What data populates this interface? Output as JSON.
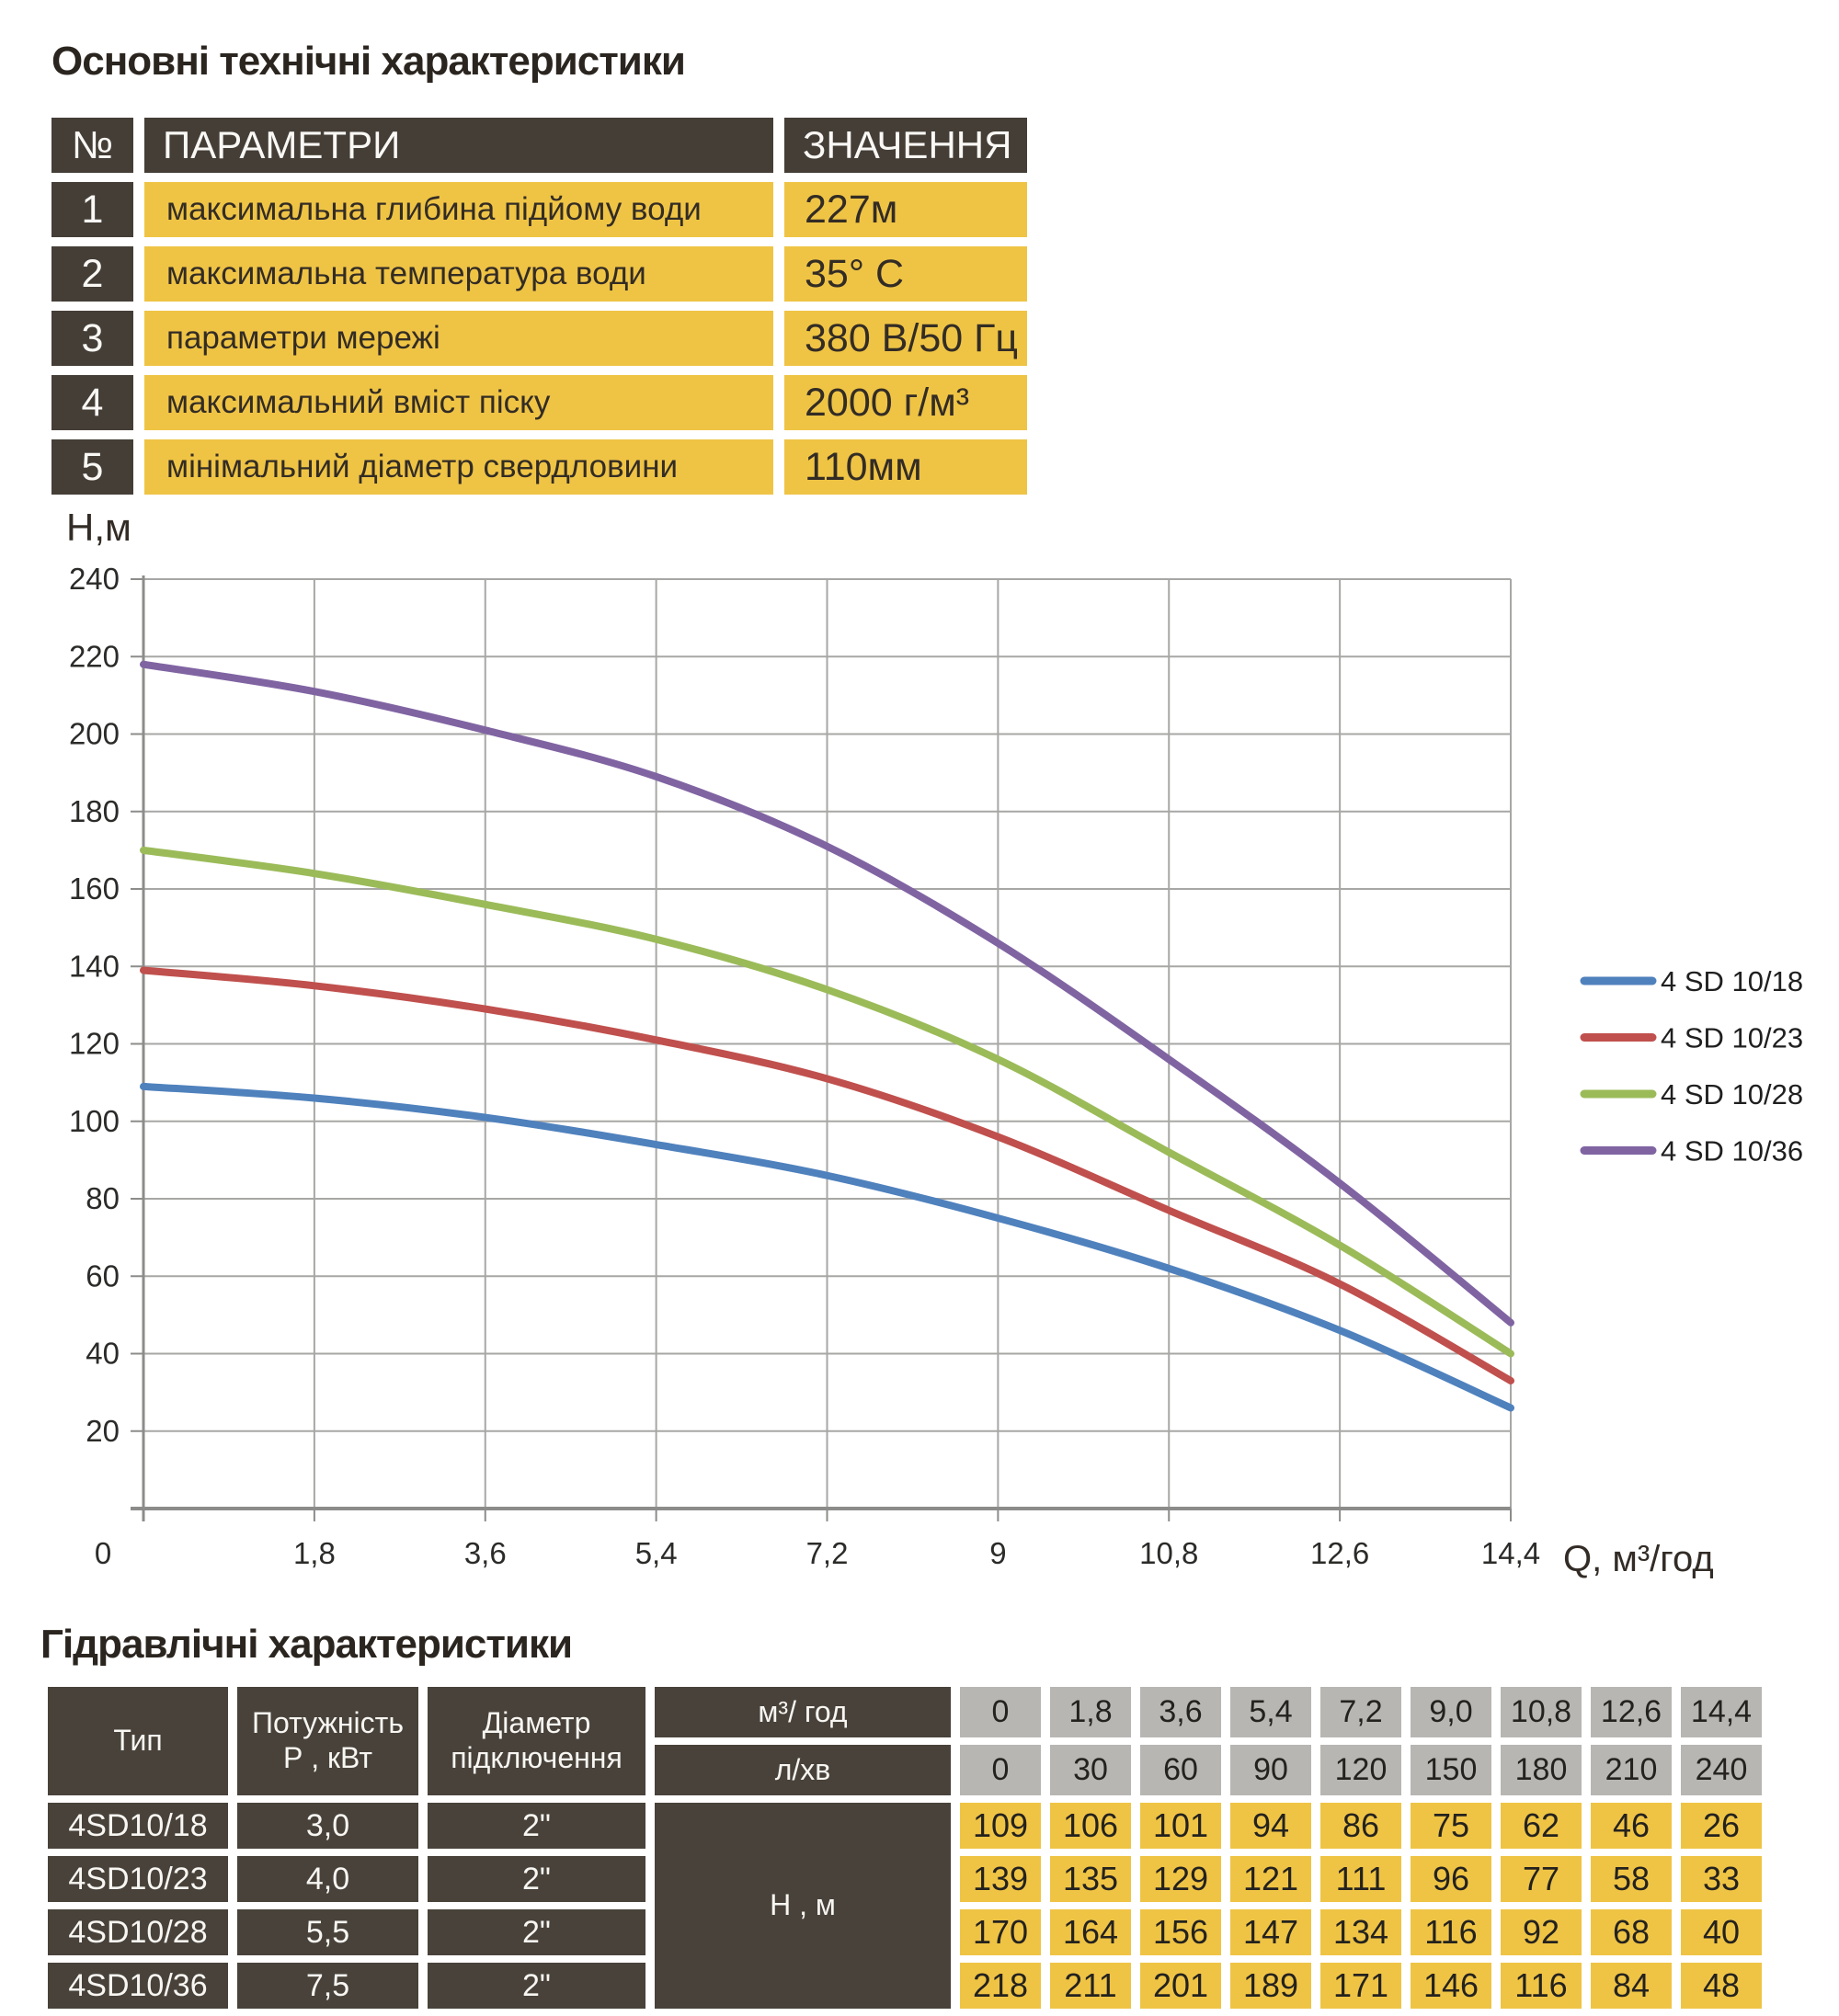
{
  "colors": {
    "accent_yellow": "#EFC445",
    "header_dark_top": "#443E37",
    "header_dark_bottom": "#48423A",
    "cell_gray": "#B8B6B2",
    "series_blue": "#4F81BD",
    "series_red": "#C0504D",
    "series_green": "#9BBB59",
    "series_purple": "#8064A2"
  },
  "section1": {
    "title": "Основні технічні характеристики",
    "table": {
      "headers": {
        "num": "№",
        "param": "ПАРАМЕТРИ",
        "value": "ЗНАЧЕННЯ"
      },
      "rows": [
        {
          "num": "1",
          "param": "максимальна глибина підйому води",
          "value": "227м"
        },
        {
          "num": "2",
          "param": "максимальна температура води",
          "value": "35° С"
        },
        {
          "num": "3",
          "param": "параметри мережі",
          "value": "380 В/50 Гц"
        },
        {
          "num": "4",
          "param": "максимальний вміст піску",
          "value": "2000 г/м³"
        },
        {
          "num": "5",
          "param": "мінімальний діаметр свердловини",
          "value": "110мм"
        }
      ]
    }
  },
  "chart_data": {
    "type": "line",
    "title": "",
    "ylabel": "Н,м",
    "xlabel": "Q,  м³/год",
    "x": [
      0,
      1.8,
      3.6,
      5.4,
      7.2,
      9,
      10.8,
      12.6,
      14.4
    ],
    "x_tick_labels": [
      "0",
      "1,8",
      "3,6",
      "5,4",
      "7,2",
      "9",
      "10,8",
      "12,6",
      "14,4"
    ],
    "xlim": [
      0,
      14.4
    ],
    "ylim": [
      0,
      240
    ],
    "y_tick_step": 20,
    "grid": true,
    "legend_position": "right",
    "grid_color": "#A7A7A5",
    "axis_color": "#8C8C8A",
    "text_color": "#2B2B29",
    "legend_text_color": "#1F1F1F",
    "series": [
      {
        "name": "4 SD 10/18",
        "color": "#4F81BD",
        "values": [
          109,
          106,
          101,
          94,
          86,
          75,
          62,
          46,
          26
        ]
      },
      {
        "name": "4 SD 10/23",
        "color": "#C0504D",
        "values": [
          139,
          135,
          129,
          121,
          111,
          96,
          77,
          58,
          33
        ]
      },
      {
        "name": "4 SD 10/28",
        "color": "#9BBB59",
        "values": [
          170,
          164,
          156,
          147,
          134,
          116,
          92,
          68,
          40
        ]
      },
      {
        "name": "4 SD 10/36",
        "color": "#8064A2",
        "values": [
          218,
          211,
          201,
          189,
          171,
          146,
          116,
          84,
          48
        ]
      }
    ]
  },
  "section2": {
    "title": "Гідравлічні характеристики",
    "table": {
      "col_headers": {
        "type": "Тип",
        "power": "Потужність\nР , кВт",
        "diameter": "Діаметр\nпідключення",
        "flow_m3": "м³/ год",
        "flow_lmin": "л/хв",
        "head": "Н , м"
      },
      "flow_m3_values": [
        "0",
        "1,8",
        "3,6",
        "5,4",
        "7,2",
        "9,0",
        "10,8",
        "12,6",
        "14,4"
      ],
      "flow_lmin_values": [
        "0",
        "30",
        "60",
        "90",
        "120",
        "150",
        "180",
        "210",
        "240"
      ],
      "rows": [
        {
          "type": "4SD10/18",
          "power": "3,0",
          "diameter": "2\"",
          "heads": [
            "109",
            "106",
            "101",
            "94",
            "86",
            "75",
            "62",
            "46",
            "26"
          ]
        },
        {
          "type": "4SD10/23",
          "power": "4,0",
          "diameter": "2\"",
          "heads": [
            "139",
            "135",
            "129",
            "121",
            "111",
            "96",
            "77",
            "58",
            "33"
          ]
        },
        {
          "type": "4SD10/28",
          "power": "5,5",
          "diameter": "2\"",
          "heads": [
            "170",
            "164",
            "156",
            "147",
            "134",
            "116",
            "92",
            "68",
            "40"
          ]
        },
        {
          "type": "4SD10/36",
          "power": "7,5",
          "diameter": "2\"",
          "heads": [
            "218",
            "211",
            "201",
            "189",
            "171",
            "146",
            "116",
            "84",
            "48"
          ]
        }
      ]
    }
  }
}
